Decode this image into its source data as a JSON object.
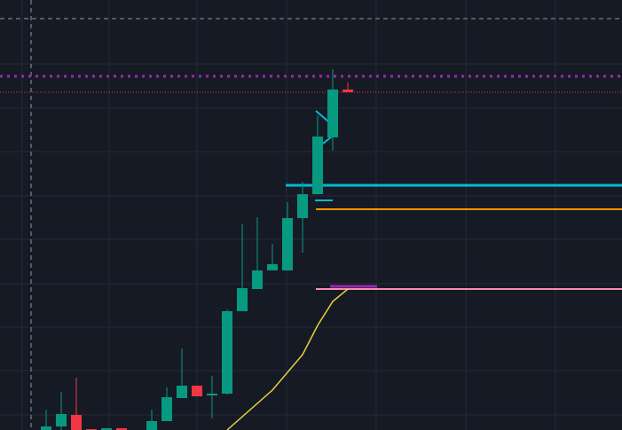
{
  "chart_data": {
    "type": "candlestick",
    "ylim": [
      0,
      485
    ],
    "open": [
      0,
      4,
      17,
      1,
      0,
      2,
      0,
      0,
      10,
      36,
      50,
      39,
      41,
      134,
      159,
      180,
      180,
      239,
      266,
      330,
      384
    ],
    "close": [
      4,
      18,
      0,
      0,
      2,
      0,
      0,
      10,
      37,
      50,
      38,
      41,
      134,
      160,
      180,
      187,
      239,
      266,
      331,
      384,
      381
    ],
    "high": [
      23,
      43,
      59,
      1,
      2,
      2,
      0,
      23,
      48,
      92,
      50,
      61,
      136,
      232,
      240,
      210,
      257,
      280,
      355,
      407,
      392
    ],
    "low": [
      0,
      0,
      0,
      0,
      0,
      0,
      0,
      0,
      10,
      36,
      38,
      13,
      40,
      134,
      159,
      180,
      180,
      200,
      266,
      315,
      381
    ],
    "up_color": "#089981",
    "down_color": "#f23645",
    "levels": [
      {
        "value": 399,
        "color": "#9c27b0",
        "style": "dotted"
      },
      {
        "value": 381,
        "color": "#f23645",
        "style": "dotted"
      },
      {
        "value": 276,
        "color": "#00bcd4",
        "style": "solid"
      },
      {
        "value": 249,
        "color": "#ff9800",
        "style": "solid"
      },
      {
        "value": 159,
        "color": "#f48fb1",
        "style": "solid"
      },
      {
        "value": 162,
        "color": "#9c27b0",
        "style": "solid"
      }
    ],
    "line": {
      "color": "#e6d33f",
      "values": [
        null,
        null,
        null,
        null,
        null,
        null,
        null,
        null,
        null,
        null,
        null,
        null,
        0,
        null,
        null,
        45,
        null,
        85,
        118,
        145,
        159
      ]
    }
  }
}
